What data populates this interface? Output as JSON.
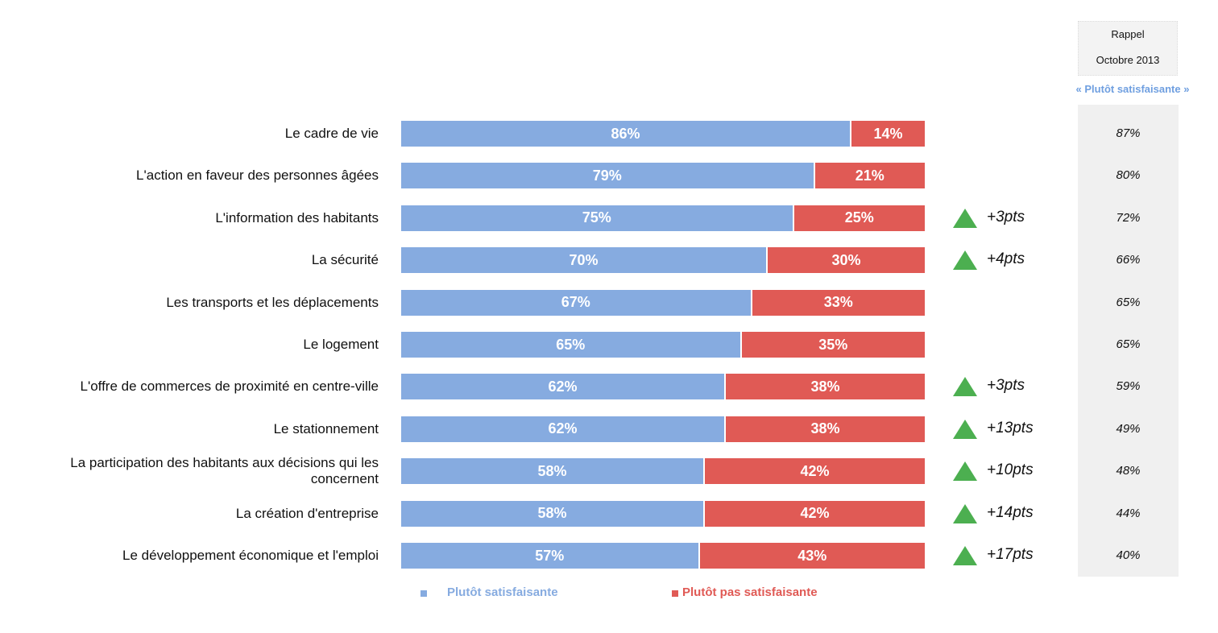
{
  "chart_data": {
    "type": "bar",
    "orientation": "horizontal-stacked",
    "categories": [
      "Le cadre de vie",
      "L'action en faveur des personnes âgées",
      "L'information des habitants",
      "La sécurité",
      "Les transports et les déplacements",
      "Le logement",
      "L'offre de commerces de proximité en centre-ville",
      "Le stationnement",
      "La participation des habitants aux décisions qui les concernent",
      "La création d'entreprise",
      "Le développement économique et l'emploi"
    ],
    "series": [
      {
        "name": "Plutôt satisfaisante",
        "color": "#86abe0",
        "values": [
          86,
          79,
          75,
          70,
          67,
          65,
          62,
          62,
          58,
          58,
          57
        ]
      },
      {
        "name": "Plutôt pas satisfaisante",
        "color": "#e05a55",
        "values": [
          14,
          21,
          25,
          30,
          33,
          35,
          38,
          38,
          42,
          42,
          43
        ]
      }
    ],
    "deltas": [
      "",
      "",
      "+3pts",
      "+4pts",
      "",
      "",
      "+3pts",
      "+13pts",
      "+10pts",
      "+14pts",
      "+17pts"
    ],
    "reminder": {
      "title_line1": "Rappel",
      "title_line2": "Octobre 2013",
      "subtitle": "« Plutôt satisfaisante »",
      "values": [
        "87%",
        "80%",
        "72%",
        "66%",
        "65%",
        "65%",
        "59%",
        "49%",
        "48%",
        "44%",
        "40%"
      ]
    },
    "legend": [
      "Plutôt satisfaisante",
      "Plutôt pas satisfaisante"
    ],
    "xlim": [
      0,
      100
    ]
  }
}
